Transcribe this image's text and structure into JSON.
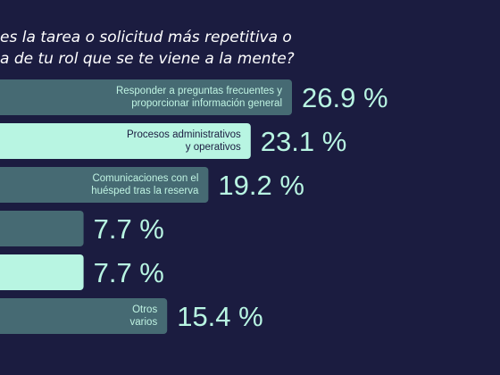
{
  "title_lines": [
    "es la tarea o solicitud más repetitiva o",
    "a de tu rol que se te viene a la mente?"
  ],
  "colors": {
    "background": "#1b1c40",
    "bar_dark": "#466a73",
    "bar_light": "#b8f5e2",
    "bar_label_dark": "#bff3e2",
    "bar_label_light": "#1b1c40",
    "value_text": "#b8f5e2"
  },
  "chart_data": {
    "type": "bar",
    "orientation": "horizontal",
    "categories": [
      [
        "Responder a preguntas frecuentes y",
        "proporcionar información general"
      ],
      [
        "Procesos administrativos",
        "y operativos"
      ],
      [
        "Comunicaciones con el",
        "huésped tras la reserva"
      ],
      [],
      [],
      [
        "Otros",
        "varios"
      ]
    ],
    "values": [
      26.9,
      23.1,
      19.2,
      7.7,
      7.7,
      15.4
    ],
    "value_labels": [
      "26.9 %",
      "23.1 %",
      "19.2 %",
      "7.7 %",
      "7.7 %",
      "15.4 %"
    ],
    "bar_styles": [
      "dark",
      "light",
      "dark",
      "dark",
      "light",
      "dark"
    ]
  }
}
